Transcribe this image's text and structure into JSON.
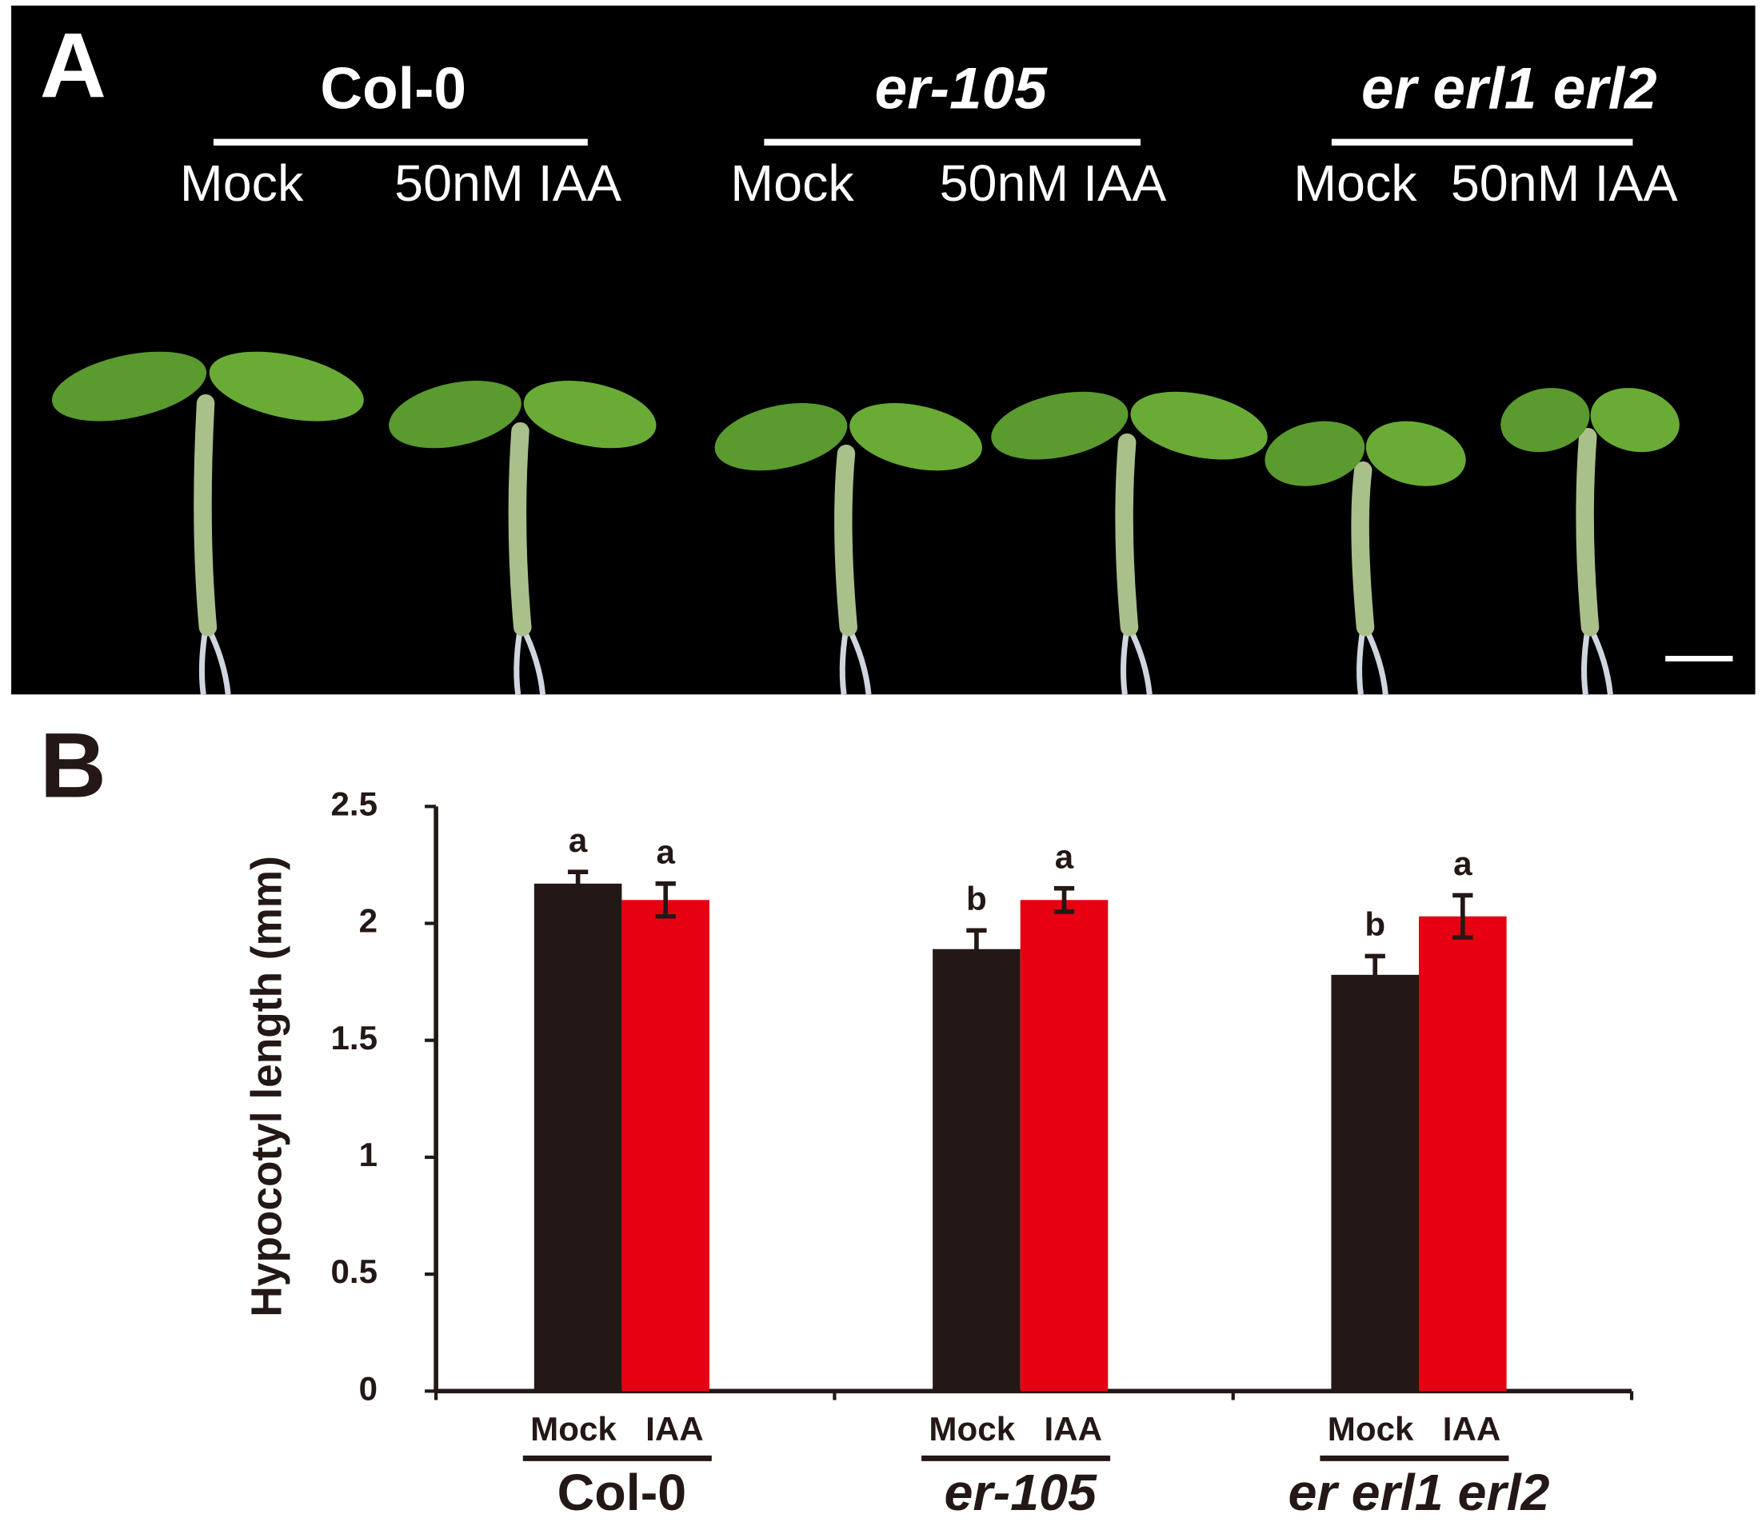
{
  "panel_a": {
    "label": "A",
    "genotypes": [
      "Col-0",
      "er-105",
      "er erl1 erl2"
    ],
    "treatments": [
      "Mock",
      "50nM IAA"
    ]
  },
  "chart_data": {
    "type": "bar",
    "label": "B",
    "ylabel": "Hypocotyl length (mm)",
    "categories": [
      "Col-0",
      "er-105",
      "er erl1 erl2"
    ],
    "series": [
      {
        "name": "Mock",
        "color": "#231815",
        "values": [
          2.17,
          1.89,
          1.78
        ],
        "errors": [
          0.05,
          0.08,
          0.08
        ],
        "letters": [
          "a",
          "b",
          "b"
        ]
      },
      {
        "name": "IAA",
        "color": "#e60012",
        "values": [
          2.1,
          2.1,
          2.03
        ],
        "errors": [
          0.07,
          0.05,
          0.09
        ],
        "letters": [
          "a",
          "a",
          "a"
        ]
      }
    ],
    "ylim": [
      0,
      2.5
    ],
    "yticks": [
      0,
      0.5,
      1,
      1.5,
      2,
      2.5
    ]
  }
}
